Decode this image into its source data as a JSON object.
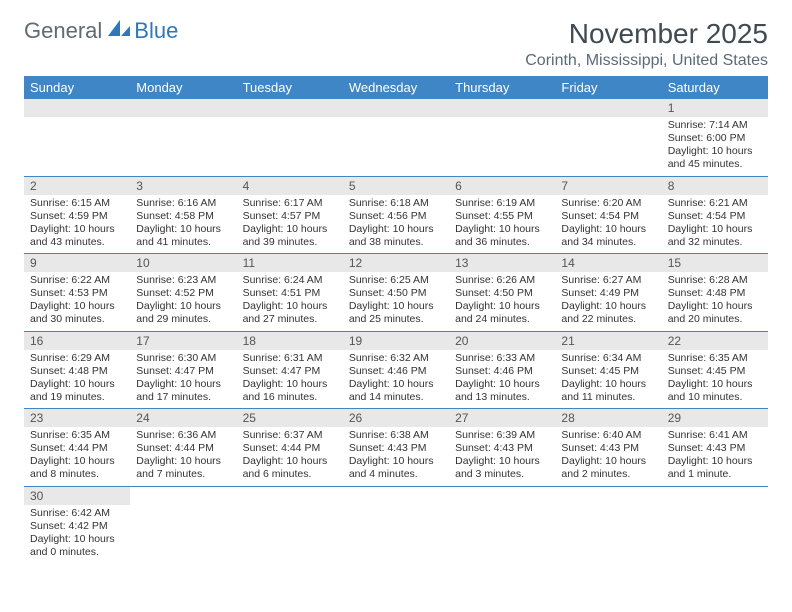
{
  "logo": {
    "part1": "General",
    "part2": "Blue"
  },
  "title": "November 2025",
  "subtitle": "Corinth, Mississippi, United States",
  "weekdays": [
    "Sunday",
    "Monday",
    "Tuesday",
    "Wednesday",
    "Thursday",
    "Friday",
    "Saturday"
  ],
  "colors": {
    "header_bg": "#3f86c6",
    "header_fg": "#ffffff",
    "daynum_bg": "#e8e8e8",
    "row_sep": "#3f86c6",
    "logo_gray": "#5f6a72",
    "logo_blue": "#2f77b8"
  },
  "weeks": [
    [
      null,
      null,
      null,
      null,
      null,
      null,
      {
        "n": "1",
        "sr": "7:14 AM",
        "ss": "6:00 PM",
        "dl": "10 hours and 45 minutes."
      }
    ],
    [
      {
        "n": "2",
        "sr": "6:15 AM",
        "ss": "4:59 PM",
        "dl": "10 hours and 43 minutes."
      },
      {
        "n": "3",
        "sr": "6:16 AM",
        "ss": "4:58 PM",
        "dl": "10 hours and 41 minutes."
      },
      {
        "n": "4",
        "sr": "6:17 AM",
        "ss": "4:57 PM",
        "dl": "10 hours and 39 minutes."
      },
      {
        "n": "5",
        "sr": "6:18 AM",
        "ss": "4:56 PM",
        "dl": "10 hours and 38 minutes."
      },
      {
        "n": "6",
        "sr": "6:19 AM",
        "ss": "4:55 PM",
        "dl": "10 hours and 36 minutes."
      },
      {
        "n": "7",
        "sr": "6:20 AM",
        "ss": "4:54 PM",
        "dl": "10 hours and 34 minutes."
      },
      {
        "n": "8",
        "sr": "6:21 AM",
        "ss": "4:54 PM",
        "dl": "10 hours and 32 minutes."
      }
    ],
    [
      {
        "n": "9",
        "sr": "6:22 AM",
        "ss": "4:53 PM",
        "dl": "10 hours and 30 minutes."
      },
      {
        "n": "10",
        "sr": "6:23 AM",
        "ss": "4:52 PM",
        "dl": "10 hours and 29 minutes."
      },
      {
        "n": "11",
        "sr": "6:24 AM",
        "ss": "4:51 PM",
        "dl": "10 hours and 27 minutes."
      },
      {
        "n": "12",
        "sr": "6:25 AM",
        "ss": "4:50 PM",
        "dl": "10 hours and 25 minutes."
      },
      {
        "n": "13",
        "sr": "6:26 AM",
        "ss": "4:50 PM",
        "dl": "10 hours and 24 minutes."
      },
      {
        "n": "14",
        "sr": "6:27 AM",
        "ss": "4:49 PM",
        "dl": "10 hours and 22 minutes."
      },
      {
        "n": "15",
        "sr": "6:28 AM",
        "ss": "4:48 PM",
        "dl": "10 hours and 20 minutes."
      }
    ],
    [
      {
        "n": "16",
        "sr": "6:29 AM",
        "ss": "4:48 PM",
        "dl": "10 hours and 19 minutes."
      },
      {
        "n": "17",
        "sr": "6:30 AM",
        "ss": "4:47 PM",
        "dl": "10 hours and 17 minutes."
      },
      {
        "n": "18",
        "sr": "6:31 AM",
        "ss": "4:47 PM",
        "dl": "10 hours and 16 minutes."
      },
      {
        "n": "19",
        "sr": "6:32 AM",
        "ss": "4:46 PM",
        "dl": "10 hours and 14 minutes."
      },
      {
        "n": "20",
        "sr": "6:33 AM",
        "ss": "4:46 PM",
        "dl": "10 hours and 13 minutes."
      },
      {
        "n": "21",
        "sr": "6:34 AM",
        "ss": "4:45 PM",
        "dl": "10 hours and 11 minutes."
      },
      {
        "n": "22",
        "sr": "6:35 AM",
        "ss": "4:45 PM",
        "dl": "10 hours and 10 minutes."
      }
    ],
    [
      {
        "n": "23",
        "sr": "6:35 AM",
        "ss": "4:44 PM",
        "dl": "10 hours and 8 minutes."
      },
      {
        "n": "24",
        "sr": "6:36 AM",
        "ss": "4:44 PM",
        "dl": "10 hours and 7 minutes."
      },
      {
        "n": "25",
        "sr": "6:37 AM",
        "ss": "4:44 PM",
        "dl": "10 hours and 6 minutes."
      },
      {
        "n": "26",
        "sr": "6:38 AM",
        "ss": "4:43 PM",
        "dl": "10 hours and 4 minutes."
      },
      {
        "n": "27",
        "sr": "6:39 AM",
        "ss": "4:43 PM",
        "dl": "10 hours and 3 minutes."
      },
      {
        "n": "28",
        "sr": "6:40 AM",
        "ss": "4:43 PM",
        "dl": "10 hours and 2 minutes."
      },
      {
        "n": "29",
        "sr": "6:41 AM",
        "ss": "4:43 PM",
        "dl": "10 hours and 1 minute."
      }
    ],
    [
      {
        "n": "30",
        "sr": "6:42 AM",
        "ss": "4:42 PM",
        "dl": "10 hours and 0 minutes."
      },
      null,
      null,
      null,
      null,
      null,
      null
    ]
  ],
  "labels": {
    "sunrise": "Sunrise: ",
    "sunset": "Sunset: ",
    "daylight": "Daylight: "
  }
}
